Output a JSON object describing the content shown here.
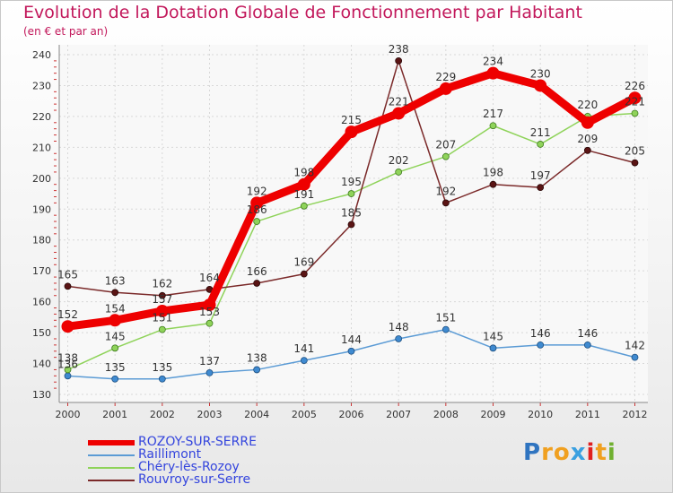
{
  "header": {
    "title": "Evolution de la Dotation Globale de Fonctionnement par Habitant",
    "subtitle": "(en € et par an)"
  },
  "chart_data": {
    "type": "line",
    "title": "Evolution de la Dotation Globale de Fonctionnement par Habitant",
    "subtitle": "(en € et par an)",
    "xlabel": "",
    "ylabel": "",
    "ylim": [
      130,
      240
    ],
    "yticks": [
      130,
      140,
      150,
      160,
      170,
      180,
      190,
      200,
      210,
      220,
      230,
      240
    ],
    "grid": true,
    "legend_position": "bottom-left",
    "categories": [
      "2000",
      "2001",
      "2002",
      "2003",
      "2004",
      "2005",
      "2006",
      "2007",
      "2008",
      "2009",
      "2010",
      "2011",
      "2012"
    ],
    "series": [
      {
        "name": "ROZOY-SUR-SERRE",
        "color": "#ee0000",
        "values": [
          152,
          154,
          157,
          159,
          192,
          198,
          215,
          221,
          229,
          234,
          230,
          218,
          226
        ],
        "labels": [
          "152",
          "154",
          "157",
          "",
          "192",
          "198",
          "215",
          "221",
          "229",
          "234",
          "230",
          "",
          "226"
        ]
      },
      {
        "name": "Raillimont",
        "color": "#5b9bd5",
        "values": [
          136,
          135,
          135,
          137,
          138,
          141,
          144,
          148,
          151,
          145,
          146,
          146,
          142
        ],
        "labels": [
          "136",
          "135",
          "135",
          "137",
          "138",
          "141",
          "144",
          "148",
          "151",
          "145",
          "146",
          "146",
          "142"
        ]
      },
      {
        "name": "Chéry-lès-Rozoy",
        "color": "#8fd35a",
        "values": [
          138,
          145,
          151,
          153,
          186,
          191,
          195,
          202,
          207,
          217,
          211,
          220,
          221
        ],
        "labels": [
          "138",
          "145",
          "151",
          "153",
          "186",
          "191",
          "195",
          "202",
          "207",
          "217",
          "211",
          "220",
          "221"
        ]
      },
      {
        "name": "Rouvroy-sur-Serre",
        "color": "#7b2a2a",
        "values": [
          165,
          163,
          162,
          164,
          166,
          169,
          185,
          238,
          192,
          198,
          197,
          209,
          205
        ],
        "labels": [
          "165",
          "163",
          "162",
          "164",
          "166",
          "169",
          "185",
          "238",
          "192",
          "198",
          "197",
          "209",
          "205"
        ]
      }
    ]
  },
  "brand": {
    "letters": [
      "P",
      "r",
      "o",
      "x",
      "i",
      "t",
      "i"
    ],
    "colors": [
      "#2f74c0",
      "#f0a020",
      "#f0a020",
      "#3aa0e0",
      "#e02020",
      "#f0a020",
      "#70b030"
    ]
  }
}
